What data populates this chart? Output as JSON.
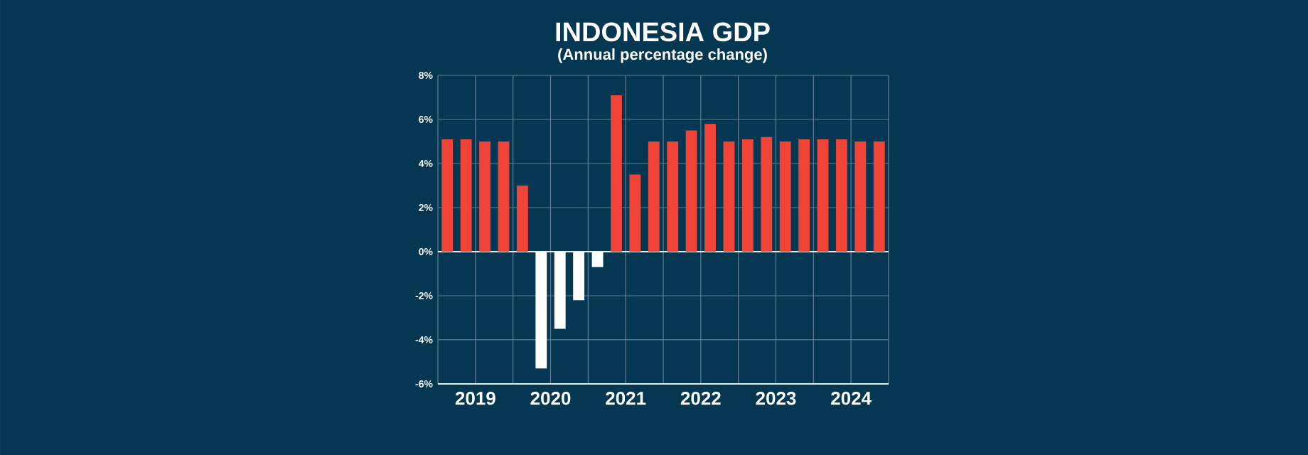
{
  "chart_data": {
    "type": "bar",
    "title": "INDONESIA GDP",
    "subtitle": "(Annual percentage change)",
    "x": [
      2019.125,
      2019.375,
      2019.625,
      2019.875,
      2020.125,
      2020.375,
      2020.625,
      2020.875,
      2021.125,
      2021.375,
      2021.625,
      2021.875,
      2022.125,
      2022.375,
      2022.625,
      2022.875,
      2023.125,
      2023.375,
      2023.625,
      2023.875,
      2024.125,
      2024.375,
      2024.625,
      2024.875
    ],
    "values": [
      5.1,
      5.1,
      5.0,
      5.0,
      3.0,
      -5.3,
      -3.5,
      -2.2,
      -0.7,
      7.1,
      3.5,
      5.0,
      5.0,
      5.5,
      5.8,
      5.0,
      5.1,
      5.2,
      5.0,
      5.1,
      5.1,
      5.1,
      5.0,
      5.0
    ],
    "colors": [
      "#f04438",
      "#f04438",
      "#f04438",
      "#f04438",
      "#f04438",
      "#ffffff",
      "#ffffff",
      "#ffffff",
      "#ffffff",
      "#f04438",
      "#f04438",
      "#f04438",
      "#f04438",
      "#f04438",
      "#f04438",
      "#f04438",
      "#f04438",
      "#f04438",
      "#f04438",
      "#f04438",
      "#f04438",
      "#f04438",
      "#f04438",
      "#f04438"
    ],
    "xlim": [
      2019,
      2025
    ],
    "xticks": [
      {
        "value": 2019,
        "label": null
      },
      {
        "value": 2019.5,
        "label": "2019"
      },
      {
        "value": 2020,
        "label": null
      },
      {
        "value": 2020.5,
        "label": "2020"
      },
      {
        "value": 2021,
        "label": null
      },
      {
        "value": 2021.5,
        "label": "2021"
      },
      {
        "value": 2022,
        "label": null
      },
      {
        "value": 2022.5,
        "label": "2022"
      },
      {
        "value": 2023,
        "label": null
      },
      {
        "value": 2023.5,
        "label": "2023"
      },
      {
        "value": 2024,
        "label": null
      },
      {
        "value": 2024.5,
        "label": "2024"
      },
      {
        "value": 2025,
        "label": null
      }
    ],
    "ylim": [
      -6,
      8
    ],
    "yticks": [
      {
        "value": -6,
        "label": "-6%"
      },
      {
        "value": -4,
        "label": "-4%"
      },
      {
        "value": -2,
        "label": "-2%"
      },
      {
        "value": 0,
        "label": "0%"
      },
      {
        "value": 2,
        "label": "2%"
      },
      {
        "value": 4,
        "label": "4%"
      },
      {
        "value": 6,
        "label": "6%"
      },
      {
        "value": 8,
        "label": "8%"
      }
    ],
    "grid": true
  }
}
